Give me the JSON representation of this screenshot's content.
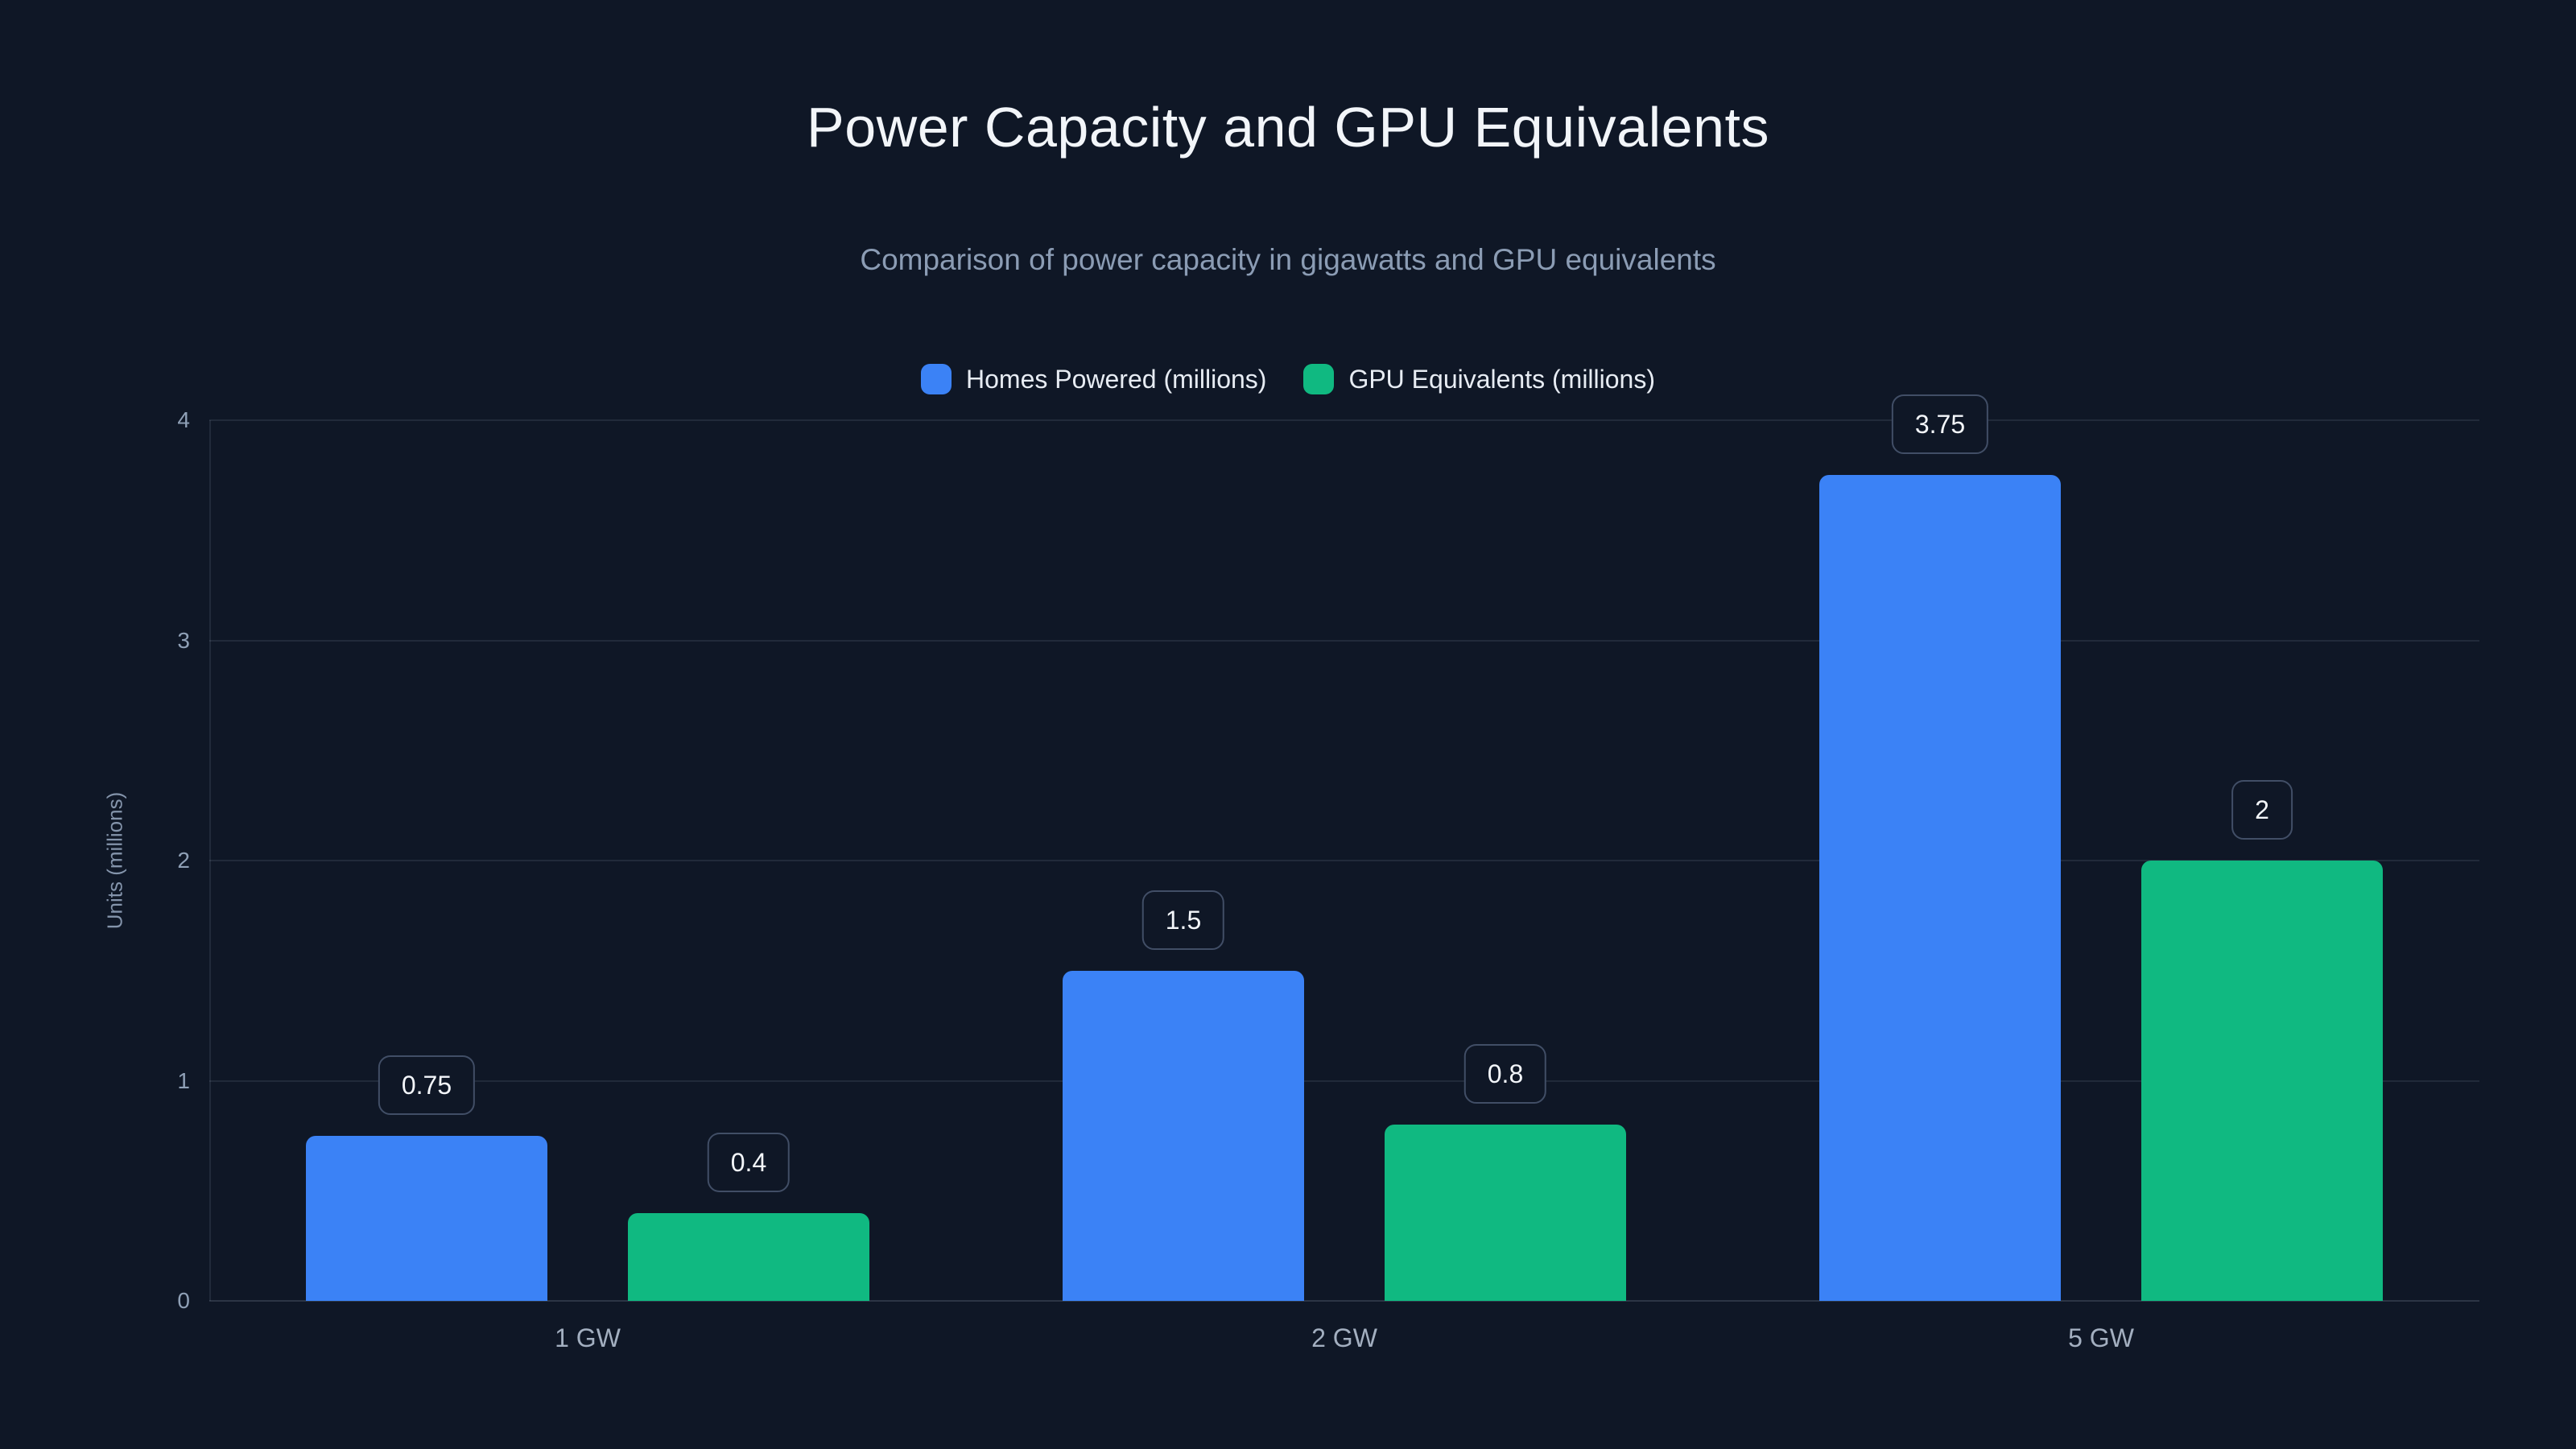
{
  "page": {
    "background_color": "#0f1726"
  },
  "header": {
    "title": "Power Capacity and GPU Equivalents",
    "subtitle": "Comparison of power capacity in gigawatts and GPU equivalents"
  },
  "chart_data": {
    "type": "bar",
    "title": "Power Capacity and GPU Equivalents",
    "subtitle": "Comparison of power capacity in gigawatts and GPU equivalents",
    "categories": [
      "1 GW",
      "2 GW",
      "5 GW"
    ],
    "series": [
      {
        "name": "Homes Powered (millions)",
        "color": "#3b82f6",
        "values": [
          0.75,
          1.5,
          3.75
        ]
      },
      {
        "name": "GPU Equivalents (millions)",
        "color": "#10b981",
        "values": [
          0.4,
          0.8,
          2
        ]
      }
    ],
    "value_labels": [
      [
        "0.75",
        "1.5",
        "3.75"
      ],
      [
        "0.4",
        "0.8",
        "2"
      ]
    ],
    "xlabel": "",
    "ylabel": "Units (millions)",
    "yticks": [
      0,
      1,
      2,
      3,
      4
    ],
    "ylim": [
      0,
      4
    ],
    "grid": true,
    "legend_position": "top",
    "colors": {
      "title": "#f2f5f9",
      "subtitle": "#8b9cb4",
      "legend_text": "#e7ecf3",
      "tick_text": "#8fa0b6",
      "category_text": "#a3afc0",
      "grid": "rgba(148,163,184,0.14)",
      "badge_border": "#414e66",
      "badge_text": "#f3f6fa"
    }
  }
}
